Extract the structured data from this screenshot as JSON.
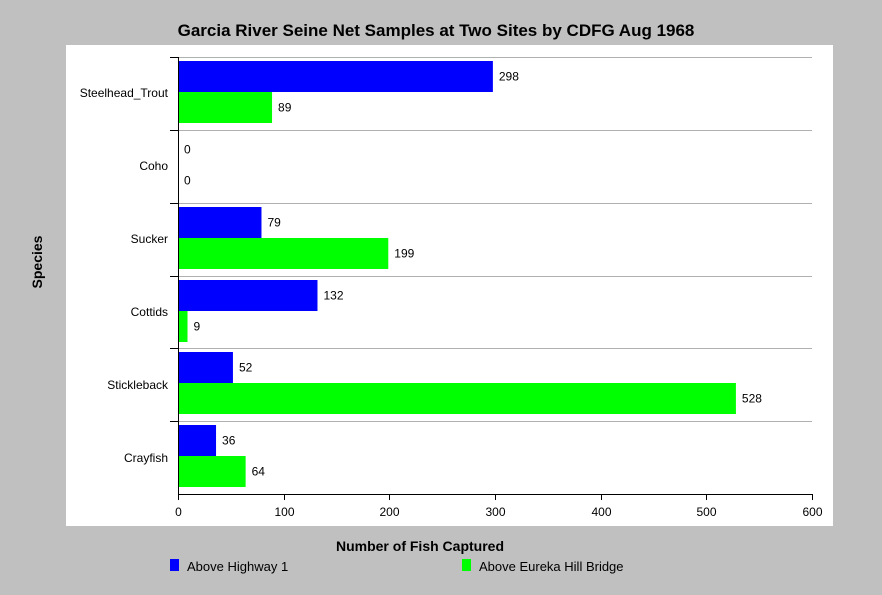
{
  "chart_data": {
    "type": "bar",
    "orientation": "horizontal",
    "title": "Garcia River Seine Net Samples at Two Sites by CDFG Aug 1968",
    "xlabel": "Number of Fish Captured",
    "ylabel": "Species",
    "categories": [
      "Steelhead_Trout",
      "Coho",
      "Sucker",
      "Cottids",
      "Stickleback",
      "Crayfish"
    ],
    "series": [
      {
        "name": "Above Highway 1",
        "color": "#0000ff",
        "values": [
          298,
          0,
          79,
          132,
          52,
          36
        ]
      },
      {
        "name": "Above Eureka Hill Bridge",
        "color": "#00ff00",
        "values": [
          89,
          0,
          199,
          9,
          528,
          64
        ]
      }
    ],
    "xlim": [
      0,
      600
    ],
    "xticks": [
      "0",
      "100",
      "200",
      "300",
      "400",
      "500",
      "600"
    ],
    "grid": "horizontal category separators",
    "legend_position": "bottom"
  }
}
